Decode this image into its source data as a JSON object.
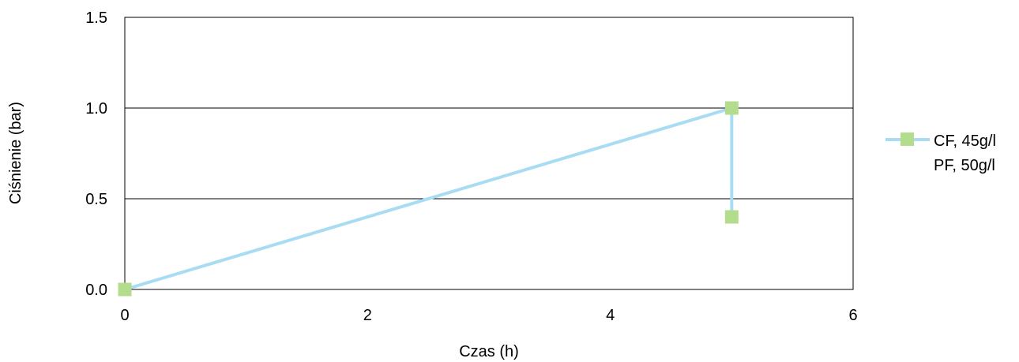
{
  "chart_data": {
    "type": "line",
    "title": "",
    "xlabel": "Czas (h)",
    "ylabel": "Ciśnienie (bar)",
    "xlim": [
      0,
      6
    ],
    "ylim": [
      0,
      1.5
    ],
    "x_ticks": [
      "0",
      "2",
      "4",
      "6"
    ],
    "y_ticks": [
      "0.0",
      "0.5",
      "1.0",
      "1.5"
    ],
    "grid": "horizontal",
    "legend_position": "right",
    "series": [
      {
        "name_lines": [
          "CF, 45g/l",
          "PF, 50g/l"
        ],
        "line_color": "#a8dcf2",
        "marker_color": "#b3dc8c",
        "x": [
          0,
          5,
          5
        ],
        "y": [
          0.0,
          1.0,
          0.4
        ]
      }
    ]
  }
}
